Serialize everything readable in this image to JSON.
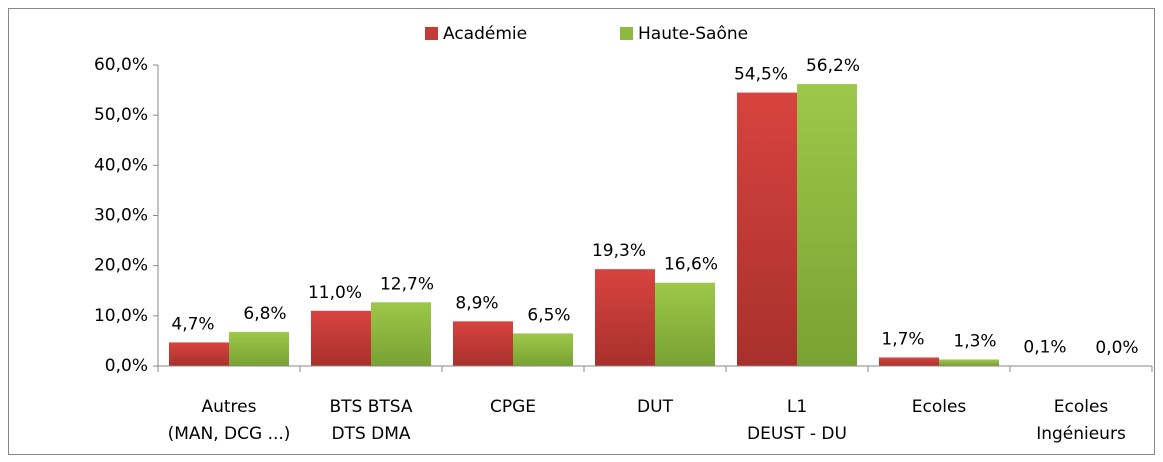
{
  "chart_data": {
    "type": "bar",
    "categories": [
      [
        "Autres",
        "(MAN, DCG ...)"
      ],
      [
        "BTS BTSA",
        "DTS  DMA"
      ],
      [
        "CPGE"
      ],
      [
        "DUT"
      ],
      [
        "L1",
        "DEUST - DU"
      ],
      [
        "Ecoles"
      ],
      [
        "Ecoles",
        "Ingénieurs"
      ]
    ],
    "series": [
      {
        "name": "Académie",
        "color": "#c33b36",
        "values": [
          4.7,
          11.0,
          8.9,
          19.3,
          54.5,
          1.7,
          0.1
        ],
        "value_labels": [
          "4,7%",
          "11,0%",
          "8,9%",
          "19,3%",
          "54,5%",
          "1,7%",
          "0,1%"
        ]
      },
      {
        "name": "Haute-Saône",
        "color": "#8dba3e",
        "values": [
          6.8,
          12.7,
          6.5,
          16.6,
          56.2,
          1.3,
          0.0
        ],
        "value_labels": [
          "6,8%",
          "12,7%",
          "6,5%",
          "16,6%",
          "56,2%",
          "1,3%",
          "0,0%"
        ]
      }
    ],
    "ylim": [
      0,
      60
    ],
    "yticks": [
      {
        "value": 0,
        "label": "0,0%"
      },
      {
        "value": 10,
        "label": "10,0%"
      },
      {
        "value": 20,
        "label": "20,0%"
      },
      {
        "value": 30,
        "label": "30,0%"
      },
      {
        "value": 40,
        "label": "40,0%"
      },
      {
        "value": 50,
        "label": "50,0%"
      },
      {
        "value": 60,
        "label": "60,0%"
      }
    ],
    "grid": false,
    "legend": "top"
  }
}
